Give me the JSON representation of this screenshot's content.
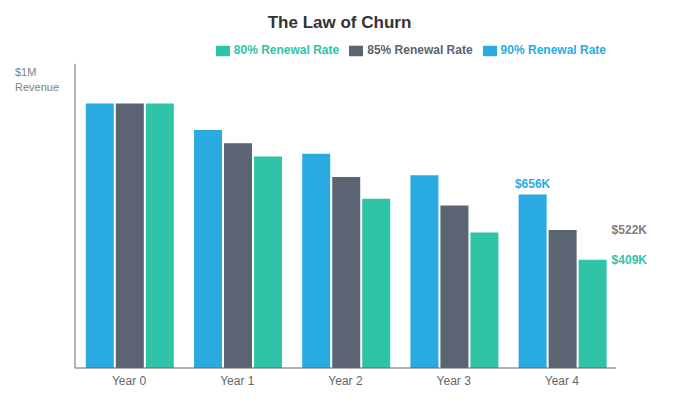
{
  "chart_data": {
    "type": "bar",
    "title": "The Law of Churn",
    "ylabel": "$1M\nRevenue",
    "categories": [
      "Year 0",
      "Year 1",
      "Year 2",
      "Year 3",
      "Year 4"
    ],
    "series": [
      {
        "name": "90% Renewal Rate",
        "color": "#29ABE2",
        "values": [
          1000,
          900,
          810,
          729,
          656
        ]
      },
      {
        "name": "85% Renewal Rate",
        "color": "#5A6472",
        "values": [
          1000,
          850,
          722,
          614,
          522
        ]
      },
      {
        "name": "80% Renewal Rate",
        "color": "#2EC4A5",
        "values": [
          1000,
          800,
          640,
          512,
          409
        ]
      }
    ],
    "annotations": [
      {
        "text": "$656K",
        "series": "90% Renewal Rate",
        "x": "Year 4",
        "y": 656,
        "color": "#29ABE2"
      },
      {
        "text": "$522K",
        "series": "85% Renewal Rate",
        "x": "Year 4",
        "y": 522,
        "color": "#808080"
      },
      {
        "text": "$409K",
        "series": "80% Renewal Rate",
        "x": "Year 4",
        "y": 409,
        "color": "#2EC4A5"
      }
    ],
    "ylim": [
      0,
      1150
    ],
    "yticks": [],
    "tick_labels": "x",
    "grid": false,
    "legend": "upper right"
  }
}
